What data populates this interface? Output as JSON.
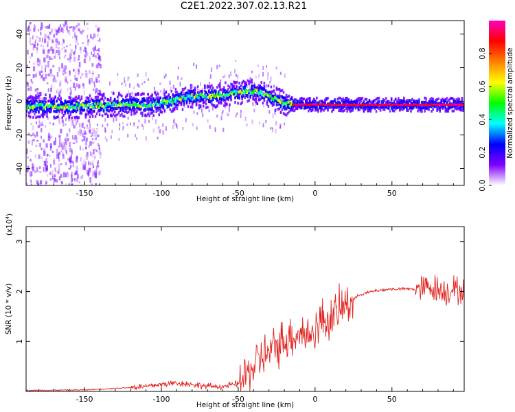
{
  "title": "C2E1.2022.307.02.13.R21",
  "chart_data": [
    {
      "type": "heatmap",
      "xlabel": "Height of straight line (km)",
      "ylabel": "Frequency (Hz)",
      "xlim": [
        -188,
        97
      ],
      "ylim": [
        -50,
        48
      ],
      "x_ticks": [
        -150,
        -100,
        -50,
        0,
        50
      ],
      "y_ticks": [
        -40,
        -20,
        0,
        20,
        40
      ],
      "colorbar": {
        "label": "Normalized spectral amplitude",
        "range": [
          0,
          1
        ],
        "ticks": [
          "0.0",
          "0.2",
          "0.4",
          "0.6",
          "0.8"
        ],
        "colors": [
          "#ffffff",
          "#8000ff",
          "#0000ff",
          "#00ffff",
          "#00ff00",
          "#ffff00",
          "#ff8000",
          "#ff0000",
          "#ff00c0"
        ]
      },
      "ridge": {
        "x": [
          -188,
          -170,
          -150,
          -130,
          -110,
          -100,
          -90,
          -80,
          -70,
          -60,
          -50,
          -40,
          -35,
          -30,
          -25,
          -20,
          -15,
          -10,
          0,
          50,
          97
        ],
        "frequency_hz": [
          -3,
          -3,
          -3,
          -2,
          -2,
          -1,
          1,
          3,
          3,
          4,
          5,
          6,
          5,
          3,
          1,
          -1,
          -2,
          -2,
          -2,
          -2,
          -2
        ]
      }
    },
    {
      "type": "line",
      "xlabel": "Height of straight line (km)",
      "ylabel": "SNR (10 * v/v)",
      "y_multiplier": "(x10",
      "y_multiplier_exp": "4",
      "y_multiplier_close": ")",
      "xlim": [
        -188,
        97
      ],
      "ylim": [
        0,
        3.3
      ],
      "x_ticks": [
        -150,
        -100,
        -50,
        0,
        50
      ],
      "y_ticks": [
        1,
        2,
        3
      ],
      "color": "#e0211d",
      "series": [
        {
          "x": [
            -188,
            -150,
            -130,
            -110,
            -100,
            -90,
            -80,
            -70,
            -60,
            -50,
            -45,
            -40,
            -35,
            -30,
            -25,
            -20,
            -15,
            -10,
            -5,
            0,
            5,
            10,
            15,
            20,
            25,
            30,
            40,
            50,
            60,
            70,
            75,
            80,
            85,
            90,
            95
          ],
          "values": [
            0.02,
            0.03,
            0.06,
            0.1,
            0.14,
            0.17,
            0.14,
            0.1,
            0.1,
            0.15,
            0.3,
            0.5,
            0.7,
            0.75,
            0.9,
            1.05,
            1.1,
            1.2,
            1.1,
            1.25,
            1.45,
            1.45,
            1.6,
            1.75,
            1.85,
            1.95,
            2.02,
            2.05,
            2.05,
            2.05,
            2.1,
            2.05,
            2.0,
            2.05,
            2.0
          ]
        }
      ]
    }
  ]
}
